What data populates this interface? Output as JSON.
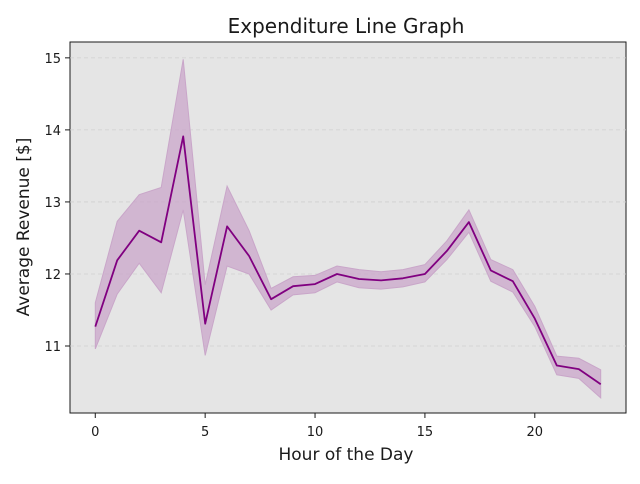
{
  "chart_data": {
    "type": "line",
    "title": "Expenditure Line Graph",
    "xlabel": "Hour of the Day",
    "ylabel": "Average Revenue [$]",
    "xlim": [
      -1.15,
      24.15
    ],
    "ylim": [
      10.07,
      15.22
    ],
    "x_ticks": [
      0,
      5,
      10,
      15,
      20
    ],
    "y_ticks": [
      11,
      12,
      13,
      14,
      15
    ],
    "grid": "horizontal-dashed",
    "background": "#e5e5e5",
    "line_color": "#800080",
    "band_color": "#c9a6c9",
    "series": [
      {
        "x": [
          0,
          1,
          2,
          3,
          4,
          5,
          6,
          7,
          8,
          9,
          10,
          11,
          12,
          13,
          14,
          15,
          16,
          17,
          18,
          19,
          20,
          21,
          22,
          23
        ],
        "values": [
          11.27,
          12.19,
          12.6,
          12.44,
          13.91,
          11.31,
          12.66,
          12.25,
          11.65,
          11.83,
          11.86,
          12.0,
          11.93,
          11.91,
          11.94,
          12.0,
          12.32,
          12.72,
          12.05,
          11.9,
          11.38,
          10.73,
          10.68,
          10.47
        ],
        "ci_lower": [
          10.96,
          11.72,
          12.15,
          11.74,
          12.89,
          10.87,
          12.11,
          12.0,
          11.5,
          11.71,
          11.74,
          11.89,
          11.81,
          11.79,
          11.82,
          11.89,
          12.2,
          12.58,
          11.9,
          11.75,
          11.27,
          10.6,
          10.55,
          10.28
        ],
        "ci_upper": [
          11.6,
          12.73,
          13.1,
          13.2,
          14.98,
          11.85,
          13.22,
          12.6,
          11.8,
          11.96,
          11.98,
          12.11,
          12.06,
          12.03,
          12.06,
          12.13,
          12.46,
          12.89,
          12.2,
          12.06,
          11.55,
          10.86,
          10.83,
          10.67
        ]
      }
    ]
  }
}
